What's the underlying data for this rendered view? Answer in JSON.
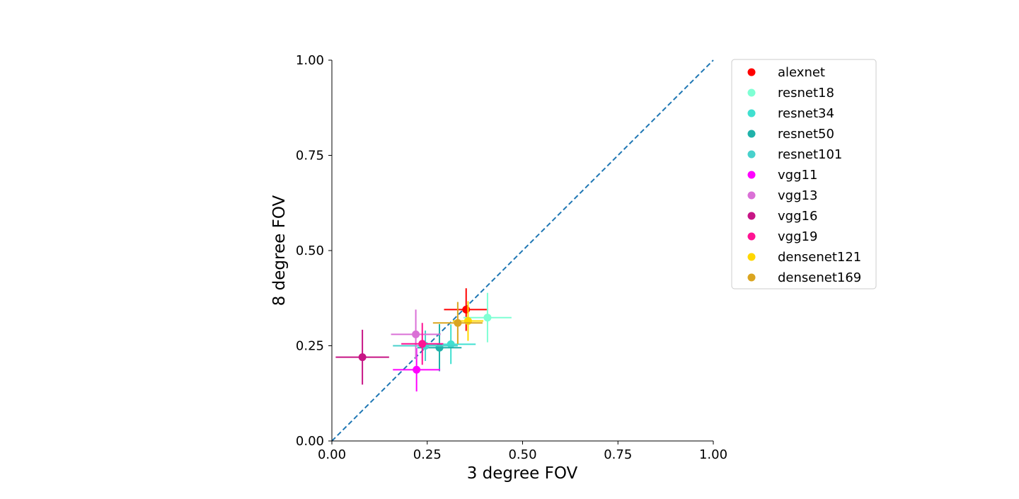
{
  "chart_data": {
    "type": "scatter",
    "title": "",
    "xlabel": "3 degree FOV",
    "ylabel": "8 degree FOV",
    "xlim": [
      0,
      1
    ],
    "ylim": [
      0,
      1
    ],
    "xticks": [
      "0.00",
      "0.25",
      "0.50",
      "0.75",
      "1.00"
    ],
    "yticks": [
      "0.00",
      "0.25",
      "0.50",
      "0.75",
      "1.00"
    ],
    "grid": false,
    "legend_position": "outside-right",
    "reference_line": {
      "style": "dashed",
      "color": "#1f77b4",
      "from": [
        0,
        0
      ],
      "to": [
        1,
        1
      ]
    },
    "series": [
      {
        "name": "alexnet",
        "color": "#ff0000",
        "x": 0.352,
        "y": 0.345,
        "xerr": 0.058,
        "yerr": 0.056
      },
      {
        "name": "resnet18",
        "color": "#7fffd4",
        "x": 0.408,
        "y": 0.324,
        "xerr": 0.063,
        "yerr": 0.065
      },
      {
        "name": "resnet34",
        "color": "#40e0d0",
        "x": 0.312,
        "y": 0.254,
        "xerr": 0.065,
        "yerr": 0.052
      },
      {
        "name": "resnet50",
        "color": "#20b2aa",
        "x": 0.282,
        "y": 0.245,
        "xerr": 0.058,
        "yerr": 0.062
      },
      {
        "name": "resnet101",
        "color": "#48d1cc",
        "x": 0.245,
        "y": 0.25,
        "xerr": 0.085,
        "yerr": 0.04
      },
      {
        "name": "vgg11",
        "color": "#ff00ff",
        "x": 0.222,
        "y": 0.187,
        "xerr": 0.062,
        "yerr": 0.057
      },
      {
        "name": "vgg13",
        "color": "#da70d6",
        "x": 0.22,
        "y": 0.28,
        "xerr": 0.065,
        "yerr": 0.065
      },
      {
        "name": "vgg16",
        "color": "#c71585",
        "x": 0.08,
        "y": 0.22,
        "xerr": 0.07,
        "yerr": 0.072
      },
      {
        "name": "vgg19",
        "color": "#ff1493",
        "x": 0.237,
        "y": 0.255,
        "xerr": 0.055,
        "yerr": 0.055
      },
      {
        "name": "densenet121",
        "color": "#ffd700",
        "x": 0.357,
        "y": 0.315,
        "xerr": 0.04,
        "yerr": 0.052
      },
      {
        "name": "densenet169",
        "color": "#daa520",
        "x": 0.33,
        "y": 0.31,
        "xerr": 0.065,
        "yerr": 0.055
      }
    ]
  }
}
